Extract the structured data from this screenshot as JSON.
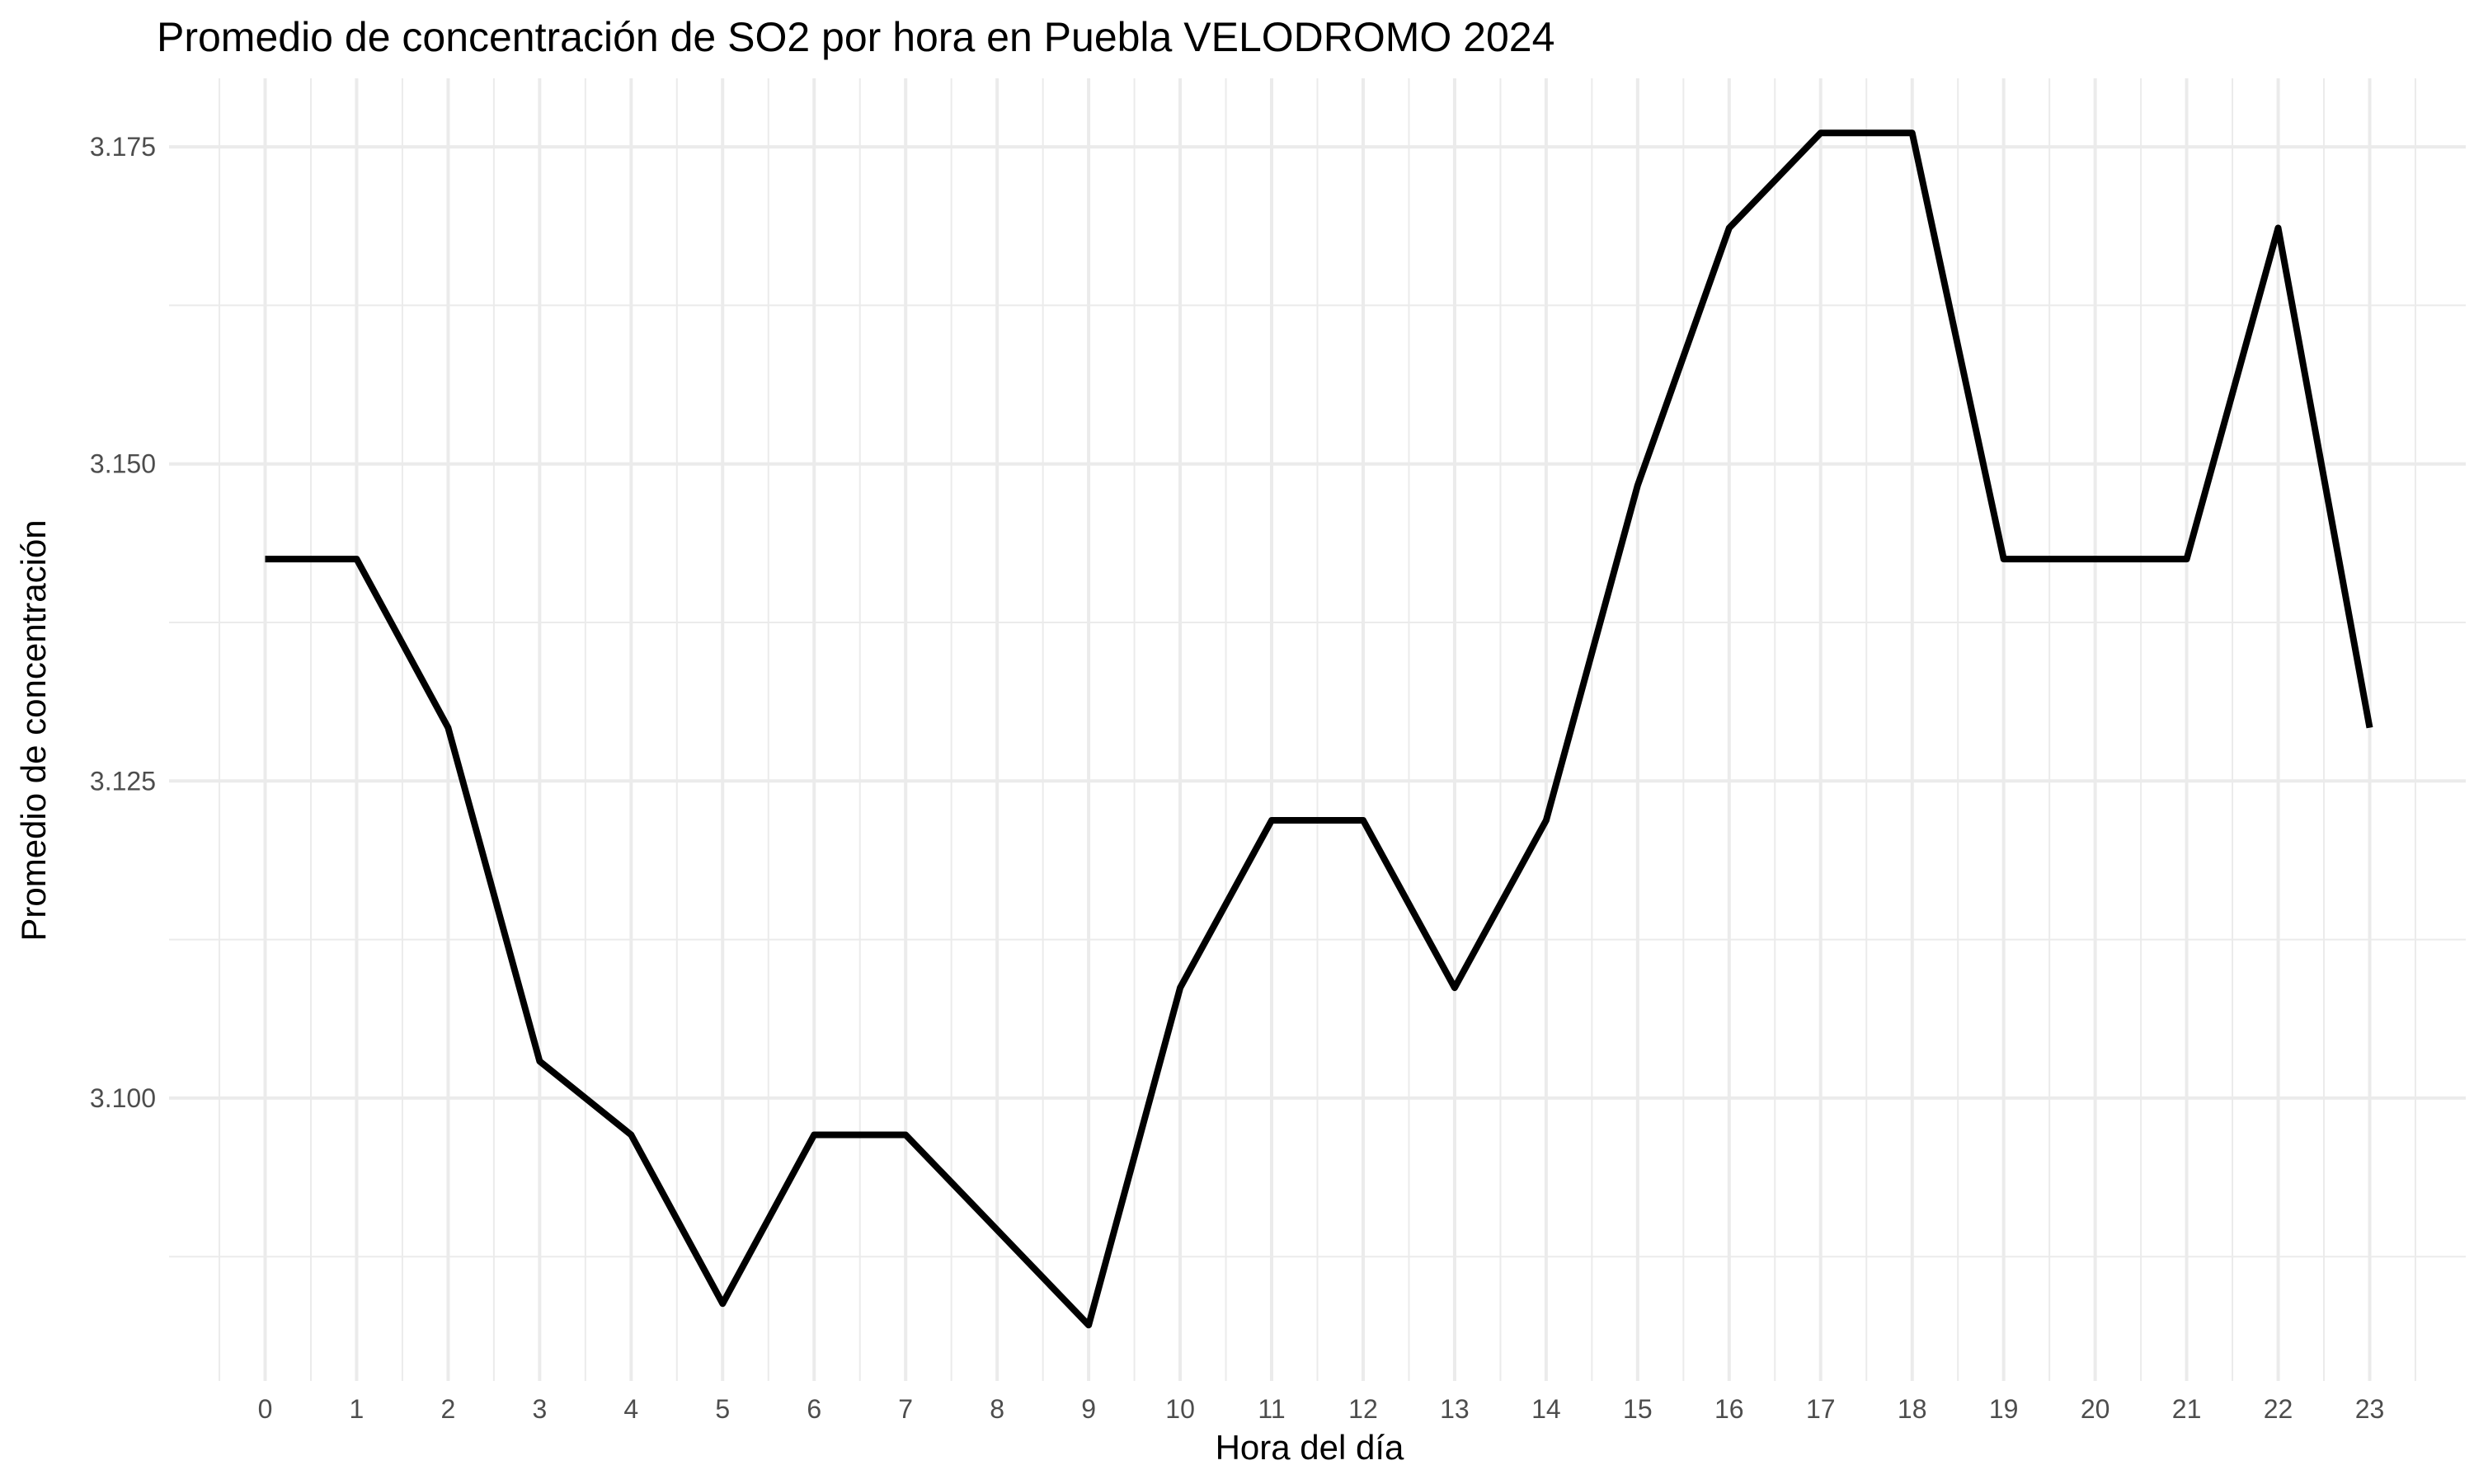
{
  "chart_data": {
    "type": "line",
    "title": "Promedio de concentración de SO2 por hora en Puebla VELODROMO 2024",
    "xlabel": "Hora del día",
    "ylabel": "Promedio de concentración",
    "x": [
      0,
      1,
      2,
      3,
      4,
      5,
      6,
      7,
      8,
      9,
      10,
      11,
      12,
      13,
      14,
      15,
      16,
      17,
      18,
      19,
      20,
      21,
      22,
      23
    ],
    "x_tick_labels": [
      "0",
      "1",
      "2",
      "3",
      "4",
      "5",
      "6",
      "7",
      "8",
      "9",
      "10",
      "11",
      "12",
      "13",
      "14",
      "15",
      "16",
      "17",
      "18",
      "19",
      "20",
      "21",
      "22",
      "23"
    ],
    "series": [
      {
        "values": [
          3.1425,
          3.1425,
          3.1292,
          3.1029,
          3.0971,
          3.0838,
          3.0971,
          3.0971,
          3.0896,
          3.0821,
          3.1087,
          3.1219,
          3.1219,
          3.1087,
          3.1219,
          3.1483,
          3.1686,
          3.1761,
          3.1761,
          3.1425,
          3.1425,
          3.1425,
          3.1686,
          3.1292
        ],
        "color": "#000000"
      }
    ],
    "y_ticks": [
      3.1,
      3.125,
      3.15,
      3.175
    ],
    "y_tick_labels": [
      "3.100",
      "3.125",
      "3.150",
      "3.175"
    ],
    "xlim": [
      -1.05,
      24.05
    ],
    "ylim": [
      3.0777,
      3.1804
    ],
    "grid": true,
    "legend": "none"
  }
}
